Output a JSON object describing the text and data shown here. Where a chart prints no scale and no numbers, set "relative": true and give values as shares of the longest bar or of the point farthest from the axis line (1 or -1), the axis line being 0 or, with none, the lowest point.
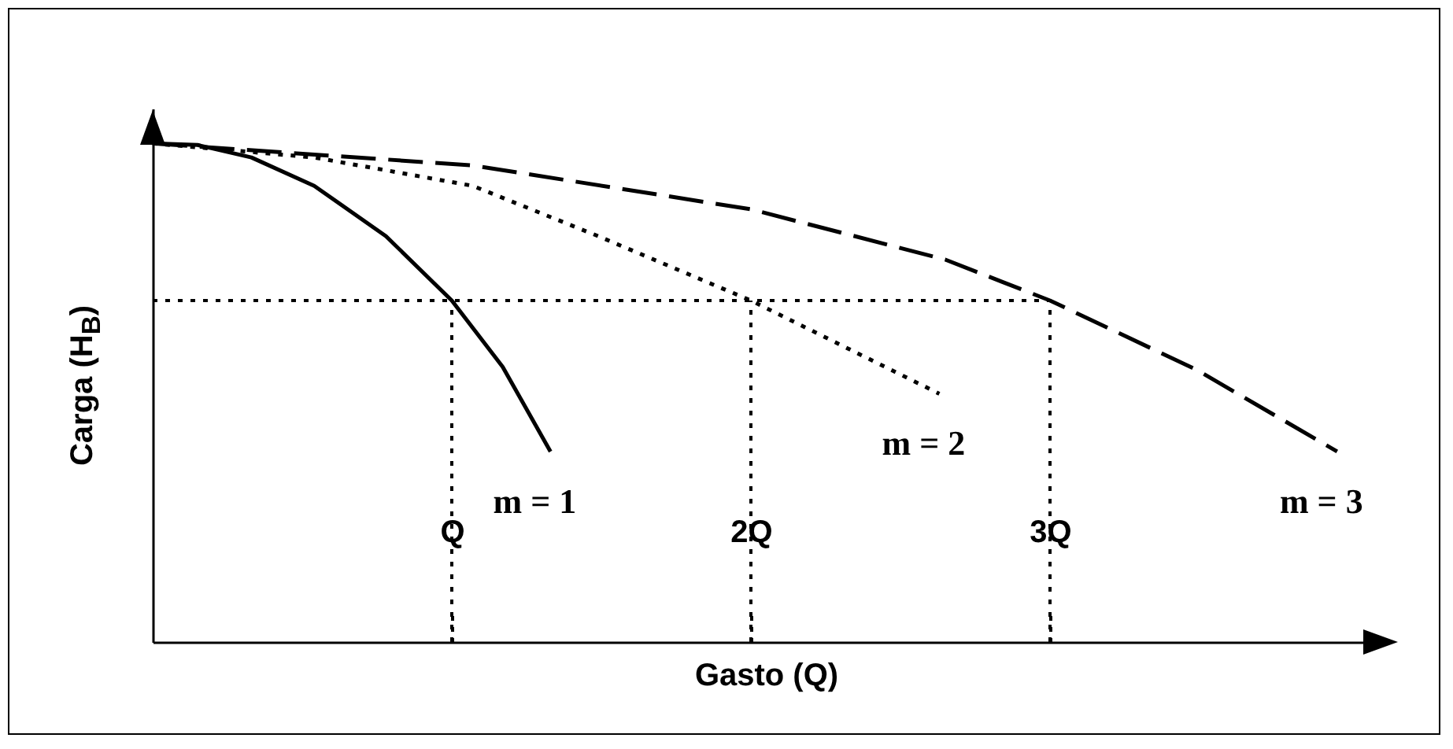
{
  "chart_data": {
    "type": "line",
    "xlabel": "Gasto (Q)",
    "ylabel": "Carga (H$_{B}$)",
    "relative": true,
    "xlim": [
      0,
      4.1
    ],
    "xticks": [
      {
        "value": 1,
        "label": "Q"
      },
      {
        "value": 2,
        "label": "2Q"
      },
      {
        "value": 3,
        "label": "3Q"
      }
    ],
    "tick_labels": "x",
    "ref_lines": [
      {
        "axis": "y",
        "value": 0.685,
        "line_style": "dotted",
        "color": "#000000"
      },
      {
        "axis": "x",
        "value": 1,
        "line_style": "dotted",
        "color": "#000000"
      },
      {
        "axis": "x",
        "value": 2,
        "line_style": "dotted",
        "color": "#000000"
      },
      {
        "axis": "x",
        "value": 3,
        "line_style": "dotted",
        "color": "#000000"
      }
    ],
    "series": [
      {
        "name": "m = 1",
        "color": "#000000",
        "line_style": "solid",
        "x": [
          0,
          0.15,
          0.33,
          0.54,
          0.78,
          1,
          1.17,
          1.33
        ],
        "values": [
          1,
          0.997,
          0.972,
          0.915,
          0.814,
          0.685,
          0.552,
          0.382
        ]
      },
      {
        "name": "m = 2",
        "color": "#000000",
        "line_style": "dotted",
        "x": [
          0,
          0.54,
          1.07,
          1.49,
          2,
          2.31,
          2.63
        ],
        "values": [
          1,
          0.972,
          0.915,
          0.814,
          0.685,
          0.593,
          0.498
        ]
      },
      {
        "name": "m = 3",
        "color": "#000000",
        "line_style": "dashed",
        "x": [
          0,
          1.07,
          2,
          2.65,
          3,
          3.49,
          3.96
        ],
        "values": [
          1,
          0.956,
          0.868,
          0.767,
          0.685,
          0.546,
          0.382
        ]
      }
    ]
  }
}
